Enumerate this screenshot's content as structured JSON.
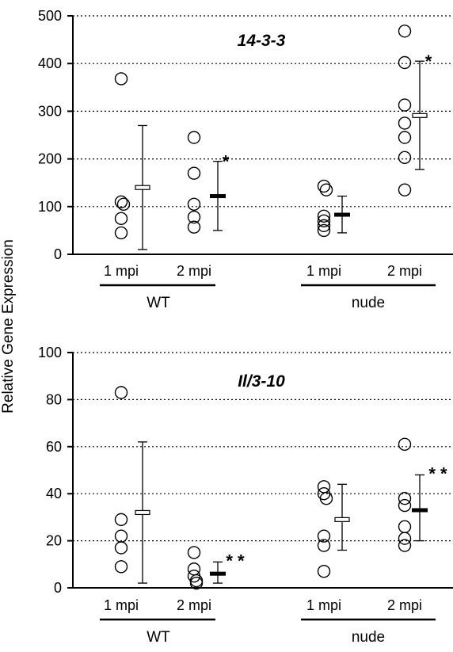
{
  "ylabel": "Relative Gene Expression",
  "chart_data": [
    {
      "type": "scatter",
      "title": "14-3-3",
      "ylabel": "Relative Gene Expression",
      "ylim": [
        0,
        500
      ],
      "yticks": [
        0,
        100,
        200,
        300,
        400,
        500
      ],
      "grid": "horizontal dotted",
      "genotypes": [
        "WT",
        "nude"
      ],
      "groups": [
        {
          "label": "1 mpi",
          "genotype": "WT",
          "points": [
            368,
            110,
            105,
            75,
            45
          ],
          "mean": 140,
          "error": [
            10,
            270
          ],
          "mean_style": "open",
          "significance": ""
        },
        {
          "label": "2 mpi",
          "genotype": "WT",
          "points": [
            245,
            170,
            105,
            78,
            57
          ],
          "mean": 122,
          "error": [
            50,
            195
          ],
          "mean_style": "solid",
          "significance": "*"
        },
        {
          "label": "1 mpi",
          "genotype": "nude",
          "points": [
            143,
            135,
            80,
            70,
            60,
            50
          ],
          "mean": 83,
          "error": [
            45,
            122
          ],
          "mean_style": "solid",
          "significance": ""
        },
        {
          "label": "2 mpi",
          "genotype": "nude",
          "points": [
            468,
            402,
            313,
            275,
            245,
            203,
            135
          ],
          "mean": 291,
          "error": [
            178,
            405
          ],
          "mean_style": "open",
          "significance": "*"
        }
      ]
    },
    {
      "type": "scatter",
      "title": "Il/3-10",
      "ylabel": "Relative Gene Expression",
      "ylim": [
        0,
        100
      ],
      "yticks": [
        0,
        20,
        40,
        60,
        80,
        100
      ],
      "grid": "horizontal dotted",
      "genotypes": [
        "WT",
        "nude"
      ],
      "groups": [
        {
          "label": "1 mpi",
          "genotype": "WT",
          "points": [
            83,
            29,
            22,
            17,
            9
          ],
          "mean": 32,
          "error": [
            2,
            62
          ],
          "mean_style": "open",
          "significance": ""
        },
        {
          "label": "2 mpi",
          "genotype": "WT",
          "points": [
            15,
            8,
            5,
            3,
            2
          ],
          "mean": 6,
          "error": [
            2,
            11
          ],
          "mean_style": "solid",
          "significance": "* *"
        },
        {
          "label": "1 mpi",
          "genotype": "nude",
          "points": [
            43,
            40,
            38,
            22,
            18,
            7
          ],
          "mean": 29,
          "error": [
            16,
            44
          ],
          "mean_style": "open",
          "significance": ""
        },
        {
          "label": "2 mpi",
          "genotype": "nude",
          "points": [
            61,
            38,
            35,
            26,
            21,
            18
          ],
          "mean": 33,
          "error": [
            20,
            48
          ],
          "mean_style": "solid",
          "significance": "* *"
        }
      ]
    }
  ]
}
